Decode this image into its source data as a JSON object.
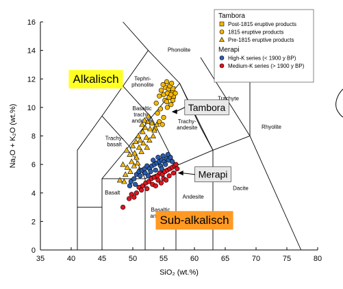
{
  "chart_data": {
    "type": "scatter",
    "xlabel": "SiO₂ (wt.%)",
    "ylabel": "Na₂O + K₂O (wt.%)",
    "xlim": [
      35,
      80
    ],
    "ylim": [
      0,
      16
    ],
    "x_ticks": [
      "35",
      "40",
      "45",
      "50",
      "55",
      "60",
      "65",
      "70",
      "75",
      "80"
    ],
    "y_ticks": [
      "0",
      "2",
      "4",
      "6",
      "8",
      "10",
      "12",
      "14",
      "16"
    ],
    "grid": false,
    "legend_position": "top-right",
    "field_boundaries": [
      [
        [
          41,
          0
        ],
        [
          41,
          3
        ],
        [
          45,
          3
        ],
        [
          45,
          0
        ]
      ],
      [
        [
          41,
          3
        ],
        [
          41,
          7
        ],
        [
          45,
          9.4
        ],
        [
          48.4,
          11.5
        ],
        [
          52.5,
          14
        ],
        [
          57.6,
          11.7
        ],
        [
          61,
          8.6
        ],
        [
          63,
          7
        ],
        [
          63,
          0
        ]
      ],
      [
        [
          45,
          3
        ],
        [
          45,
          5
        ],
        [
          52,
          5
        ],
        [
          57,
          5.9
        ],
        [
          63,
          7
        ],
        [
          69,
          8
        ],
        [
          77.3,
          0
        ]
      ],
      [
        [
          52,
          0
        ],
        [
          52,
          5
        ]
      ],
      [
        [
          57,
          0
        ],
        [
          57,
          5.9
        ]
      ],
      [
        [
          45,
          5
        ],
        [
          49.4,
          7.3
        ],
        [
          53,
          9.3
        ],
        [
          57.6,
          11.7
        ]
      ],
      [
        [
          52,
          5
        ],
        [
          49.4,
          7.3
        ],
        [
          45,
          9.4
        ]
      ],
      [
        [
          57,
          5.9
        ],
        [
          53,
          9.3
        ],
        [
          48.4,
          11.5
        ]
      ],
      [
        [
          63,
          7
        ],
        [
          57.6,
          11.7
        ]
      ],
      [
        [
          69,
          8
        ],
        [
          69,
          13
        ]
      ],
      [
        [
          61,
          13.5
        ],
        [
          69,
          8
        ]
      ],
      [
        [
          52.5,
          14
        ],
        [
          48.4,
          16
        ]
      ]
    ],
    "field_labels": [
      {
        "lines": [
          "Phonolite"
        ],
        "x": 57.5,
        "y": 13.9
      },
      {
        "lines": [
          "Tephri-",
          "phonolite"
        ],
        "x": 51.6,
        "y": 11.9
      },
      {
        "lines": [
          "Trachyte"
        ],
        "x": 65.5,
        "y": 10.5
      },
      {
        "lines": [
          "Basaltic",
          "trachy-",
          "andesite"
        ],
        "x": 51.5,
        "y": 9.8
      },
      {
        "lines": [
          "Trachy-",
          "andesite"
        ],
        "x": 58.8,
        "y": 8.9
      },
      {
        "lines": [
          "Rhyolite"
        ],
        "x": 72.5,
        "y": 8.5
      },
      {
        "lines": [
          "Trachy-",
          "basalt"
        ],
        "x": 47,
        "y": 7.7
      },
      {
        "lines": [
          "Dacite"
        ],
        "x": 67.5,
        "y": 4.2
      },
      {
        "lines": [
          "Basalt"
        ],
        "x": 46.7,
        "y": 3.9
      },
      {
        "lines": [
          "Andesite"
        ],
        "x": 59.8,
        "y": 3.6
      },
      {
        "lines": [
          "Basaltic",
          "andesite"
        ],
        "x": 54.5,
        "y": 2.7
      }
    ],
    "annotations": [
      {
        "text": "Alkalisch",
        "x": 44,
        "y": 12,
        "bg": "#ffff22"
      },
      {
        "text": "Sub-alkalisch",
        "x": 60,
        "y": 2.1,
        "bg": "#ff9922"
      },
      {
        "text": "Tambora",
        "x": 62,
        "y": 10,
        "bg": "#e8e8e8",
        "arrow_to": [
          56.3,
          9.7
        ]
      },
      {
        "text": "Merapi",
        "x": 63,
        "y": 5.3,
        "bg": "#e8e8e8",
        "arrow_to": [
          57.3,
          5.4
        ]
      }
    ],
    "legend": {
      "groups": [
        {
          "title": "Tambora",
          "items": [
            {
              "label": "Post-1815 eruptive products",
              "marker": "square",
              "color": "#f5b800"
            },
            {
              "label": "1815 eruptive products",
              "marker": "circle",
              "color": "#f5b800"
            },
            {
              "label": "Pre-1815 eruptive products",
              "marker": "triangle",
              "color": "#f5b800"
            }
          ]
        },
        {
          "title": "Merapi",
          "items": [
            {
              "label": "High-K series (< 1900 y BP)",
              "marker": "circle",
              "color": "#2a5db0"
            },
            {
              "label": "Medium-K series (> 1900 y BP)",
              "marker": "circle",
              "color": "#e0141e"
            }
          ]
        }
      ]
    },
    "series": [
      {
        "name": "Post-1815 eruptive products",
        "marker": "square",
        "color": "#f5b800",
        "points": [
          [
            56.5,
            11.3
          ],
          [
            56.4,
            11.0
          ],
          [
            56.6,
            10.8
          ]
        ]
      },
      {
        "name": "1815 eruptive products",
        "marker": "circle",
        "color": "#f5b800",
        "points": [
          [
            54.6,
            11.2
          ],
          [
            55.0,
            10.9
          ],
          [
            55.3,
            11.4
          ],
          [
            55.6,
            11.0
          ],
          [
            55.9,
            10.7
          ],
          [
            55.2,
            10.5
          ],
          [
            55.8,
            11.3
          ],
          [
            56.2,
            10.9
          ],
          [
            56.5,
            10.5
          ],
          [
            56.9,
            11.0
          ],
          [
            54.9,
            11.6
          ],
          [
            55.5,
            11.8
          ],
          [
            56.0,
            11.5
          ],
          [
            54.3,
            10.8
          ],
          [
            53.8,
            10.3
          ],
          [
            54.0,
            9.6
          ],
          [
            54.5,
            9.9
          ],
          [
            55.0,
            9.3
          ],
          [
            54.3,
            9.0
          ],
          [
            54.8,
            8.8
          ],
          [
            53.6,
            8.5
          ],
          [
            55.6,
            10.0
          ],
          [
            56.3,
            11.7
          ],
          [
            55.5,
            10.4
          ],
          [
            56.2,
            10.2
          ]
        ]
      },
      {
        "name": "Pre-1815 eruptive products",
        "marker": "triangle",
        "color": "#f5b800",
        "points": [
          [
            49.0,
            7.0
          ],
          [
            49.5,
            6.7
          ],
          [
            50.0,
            7.3
          ],
          [
            50.5,
            7.6
          ],
          [
            50.9,
            8.0
          ],
          [
            51.2,
            7.7
          ],
          [
            51.6,
            8.3
          ],
          [
            52.0,
            8.6
          ],
          [
            52.4,
            9.0
          ],
          [
            50.3,
            6.8
          ],
          [
            51.0,
            7.2
          ],
          [
            51.7,
            7.5
          ],
          [
            52.2,
            7.9
          ],
          [
            52.8,
            8.5
          ],
          [
            53.1,
            8.9
          ],
          [
            53.5,
            8.4
          ],
          [
            53.9,
            8.8
          ],
          [
            49.8,
            6.2
          ],
          [
            50.6,
            6.5
          ],
          [
            51.4,
            6.9
          ],
          [
            48.4,
            6.0
          ],
          [
            49.1,
            5.8
          ],
          [
            48.8,
            5.3
          ],
          [
            47.9,
            4.9
          ],
          [
            52.5,
            9.4
          ],
          [
            51.9,
            9.1
          ],
          [
            50.2,
            5.9
          ],
          [
            52.3,
            7.2
          ],
          [
            51.5,
            8.8
          ],
          [
            49.6,
            5.5
          ],
          [
            48.6,
            4.8
          ],
          [
            53.3,
            8.0
          ],
          [
            50.8,
            6.1
          ],
          [
            52.7,
            7.7
          ],
          [
            51.0,
            5.6
          ]
        ]
      },
      {
        "name": "High-K series (< 1900 y BP)",
        "marker": "circle",
        "color": "#2a5db0",
        "points": [
          [
            49.7,
            4.8
          ],
          [
            50.2,
            5.0
          ],
          [
            50.6,
            5.3
          ],
          [
            51.0,
            5.5
          ],
          [
            51.5,
            5.6
          ],
          [
            51.9,
            5.7
          ],
          [
            52.3,
            5.9
          ],
          [
            52.7,
            5.7
          ],
          [
            53.1,
            5.9
          ],
          [
            53.5,
            6.0
          ],
          [
            53.9,
            6.1
          ],
          [
            54.3,
            6.2
          ],
          [
            54.7,
            6.3
          ],
          [
            55.1,
            6.2
          ],
          [
            55.5,
            6.4
          ],
          [
            55.8,
            6.3
          ],
          [
            56.1,
            6.5
          ],
          [
            52.9,
            5.5
          ],
          [
            53.7,
            5.6
          ],
          [
            54.5,
            5.9
          ],
          [
            55.3,
            6.0
          ],
          [
            51.2,
            5.2
          ],
          [
            52.0,
            5.4
          ],
          [
            53.3,
            6.3
          ],
          [
            54.1,
            6.5
          ],
          [
            54.9,
            6.6
          ],
          [
            55.7,
            6.7
          ],
          [
            56.4,
            6.2
          ],
          [
            50.4,
            4.6
          ],
          [
            49.5,
            4.5
          ],
          [
            52.5,
            5.2
          ],
          [
            54.7,
            5.7
          ]
        ]
      },
      {
        "name": "Medium-K series (> 1900 y BP)",
        "marker": "circle",
        "color": "#e0141e",
        "points": [
          [
            48.4,
            3.0
          ],
          [
            49.8,
            3.9
          ],
          [
            50.6,
            4.0
          ],
          [
            51.0,
            4.4
          ],
          [
            51.6,
            4.5
          ],
          [
            52.1,
            4.7
          ],
          [
            52.6,
            4.8
          ],
          [
            53.0,
            5.0
          ],
          [
            53.5,
            5.1
          ],
          [
            54.0,
            5.2
          ],
          [
            54.4,
            5.4
          ],
          [
            54.8,
            5.3
          ],
          [
            55.2,
            5.5
          ],
          [
            55.6,
            5.6
          ],
          [
            56.0,
            5.7
          ],
          [
            56.4,
            5.8
          ],
          [
            56.8,
            5.9
          ],
          [
            57.2,
            5.7
          ],
          [
            52.3,
            4.3
          ],
          [
            53.2,
            4.6
          ],
          [
            54.1,
            4.9
          ],
          [
            55.0,
            5.0
          ],
          [
            55.9,
            5.2
          ],
          [
            56.6,
            5.4
          ],
          [
            51.4,
            4.2
          ],
          [
            50.2,
            3.7
          ],
          [
            49.4,
            3.6
          ],
          [
            53.7,
            4.5
          ],
          [
            54.6,
            4.7
          ],
          [
            57.0,
            6.0
          ],
          [
            55.4,
            4.9
          ]
        ]
      }
    ]
  }
}
